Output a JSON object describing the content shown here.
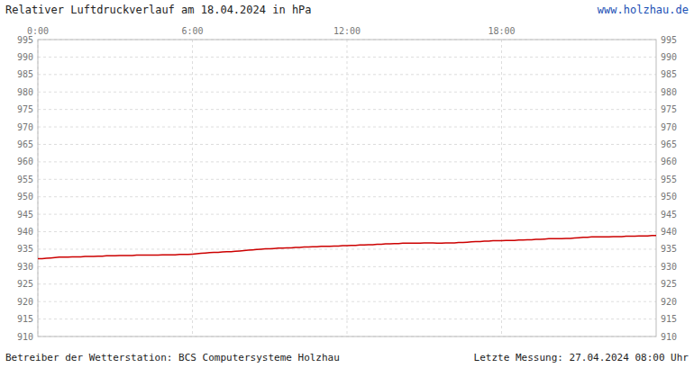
{
  "chart_data": {
    "type": "line",
    "title": "Relativer Luftdruckverlauf am 18.04.2024 in hPa",
    "annotations": [
      "www.holzhau.de",
      "Betreiber der Wetterstation: BCS Computersysteme Holzhau",
      "Letzte Messung: 27.04.2024 08:00 Uhr"
    ],
    "color": "#cc0000",
    "grid": true,
    "xlim": [
      0,
      1440
    ],
    "xticks": [
      {
        "value": 0,
        "label": "0:00"
      },
      {
        "value": 360,
        "label": "6:00"
      },
      {
        "value": 720,
        "label": "12:00"
      },
      {
        "value": 1080,
        "label": "18:00"
      }
    ],
    "ylim": [
      910,
      995
    ],
    "yticks": [
      910,
      915,
      920,
      925,
      930,
      935,
      940,
      945,
      950,
      955,
      960,
      965,
      970,
      975,
      980,
      985,
      990,
      995
    ],
    "x": [
      0,
      10,
      20,
      30,
      40,
      50,
      60,
      70,
      80,
      90,
      100,
      110,
      120,
      130,
      140,
      150,
      160,
      170,
      180,
      190,
      200,
      210,
      220,
      230,
      240,
      250,
      260,
      270,
      280,
      290,
      300,
      310,
      320,
      330,
      340,
      350,
      360,
      370,
      380,
      390,
      400,
      410,
      420,
      430,
      440,
      450,
      460,
      470,
      480,
      490,
      500,
      510,
      520,
      530,
      540,
      550,
      560,
      570,
      580,
      590,
      600,
      610,
      620,
      630,
      640,
      650,
      660,
      670,
      680,
      690,
      700,
      710,
      720,
      730,
      740,
      750,
      760,
      770,
      780,
      790,
      800,
      810,
      820,
      830,
      840,
      850,
      860,
      870,
      880,
      890,
      900,
      910,
      920,
      930,
      940,
      950,
      960,
      970,
      980,
      990,
      1000,
      1010,
      1020,
      1030,
      1040,
      1050,
      1060,
      1070,
      1080,
      1090,
      1100,
      1110,
      1120,
      1130,
      1140,
      1150,
      1160,
      1170,
      1180,
      1190,
      1200,
      1210,
      1220,
      1230,
      1240,
      1250,
      1260,
      1270,
      1280,
      1290,
      1300,
      1310,
      1320,
      1330,
      1340,
      1350,
      1360,
      1370,
      1380,
      1390,
      1400,
      1410,
      1420,
      1430,
      1440
    ],
    "values": [
      932.3,
      932.3,
      932.4,
      932.5,
      932.6,
      932.7,
      932.7,
      932.7,
      932.8,
      932.8,
      932.8,
      932.9,
      932.9,
      932.9,
      933.0,
      933.0,
      933.1,
      933.1,
      933.1,
      933.2,
      933.2,
      933.2,
      933.2,
      933.3,
      933.3,
      933.3,
      933.3,
      933.3,
      933.3,
      933.4,
      933.4,
      933.4,
      933.4,
      933.5,
      933.5,
      933.5,
      933.6,
      933.7,
      933.8,
      933.9,
      934.0,
      934.1,
      934.1,
      934.2,
      934.3,
      934.3,
      934.4,
      934.5,
      934.6,
      934.7,
      934.8,
      934.9,
      935.0,
      935.1,
      935.1,
      935.2,
      935.3,
      935.3,
      935.4,
      935.4,
      935.5,
      935.5,
      935.6,
      935.6,
      935.7,
      935.7,
      935.8,
      935.8,
      935.8,
      935.9,
      935.9,
      936.0,
      936.0,
      936.1,
      936.1,
      936.2,
      936.2,
      936.3,
      936.3,
      936.4,
      936.4,
      936.5,
      936.5,
      936.6,
      936.6,
      936.7,
      936.7,
      936.7,
      936.7,
      936.7,
      936.8,
      936.8,
      936.8,
      936.7,
      936.7,
      936.8,
      936.8,
      936.8,
      936.9,
      936.9,
      937.0,
      937.1,
      937.2,
      937.2,
      937.3,
      937.3,
      937.4,
      937.4,
      937.4,
      937.5,
      937.5,
      937.5,
      937.6,
      937.6,
      937.7,
      937.7,
      937.8,
      937.8,
      937.9,
      938.0,
      938.0,
      938.0,
      938.0,
      938.1,
      938.1,
      938.2,
      938.3,
      938.4,
      938.4,
      938.5,
      938.5,
      938.5,
      938.5,
      938.5,
      938.6,
      938.6,
      938.6,
      938.7,
      938.7,
      938.7,
      938.8,
      938.8,
      938.8,
      938.9,
      938.9
    ]
  }
}
